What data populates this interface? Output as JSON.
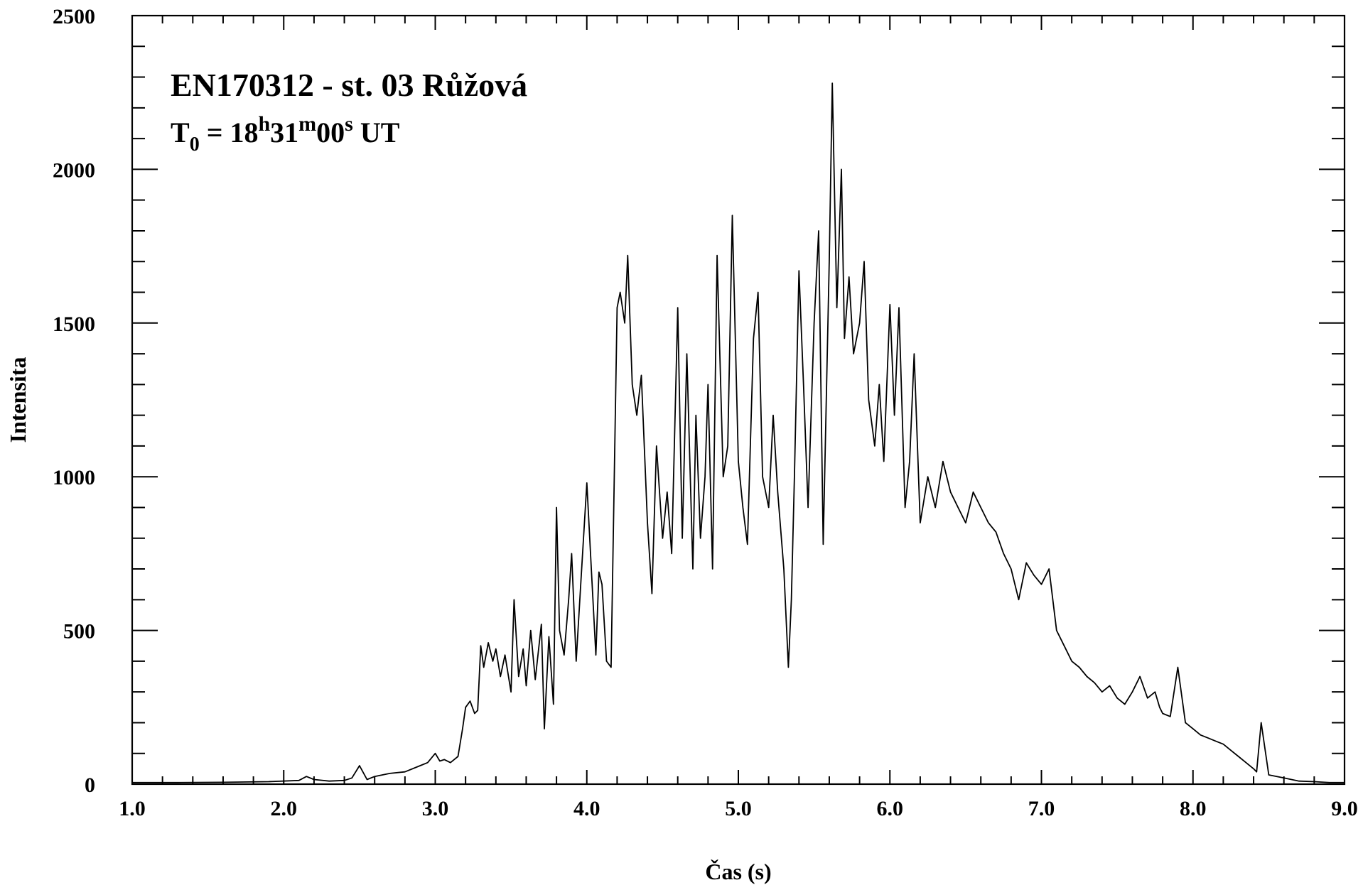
{
  "chart_data": {
    "type": "line",
    "title": "EN170312 - st. 03 Růžová",
    "subtitle": {
      "base": "T",
      "sub": "0",
      "eq": " = 18",
      "h": "h",
      "min_val": "31",
      "m": "m",
      "sec_val": "00",
      "s": "s",
      "tail": " UT"
    },
    "xlabel": "Čas (s)",
    "ylabel": "Intensita",
    "xlim": [
      1.0,
      9.0
    ],
    "ylim": [
      0,
      2500
    ],
    "x_ticks": [
      1.0,
      2.0,
      3.0,
      4.0,
      5.0,
      6.0,
      7.0,
      8.0,
      9.0
    ],
    "x_tick_labels": [
      "1.0",
      "2.0",
      "3.0",
      "4.0",
      "5.0",
      "6.0",
      "7.0",
      "8.0",
      "9.0"
    ],
    "y_ticks": [
      0,
      500,
      1000,
      1500,
      2000,
      2500
    ],
    "y_tick_labels": [
      "0",
      "500",
      "1000",
      "1500",
      "2000",
      "2500"
    ],
    "grid": false,
    "series": [
      {
        "color": "#000000",
        "x": [
          1.0,
          1.3,
          1.6,
          1.9,
          2.1,
          2.15,
          2.2,
          2.3,
          2.4,
          2.45,
          2.5,
          2.55,
          2.6,
          2.7,
          2.8,
          2.9,
          2.95,
          3.0,
          3.03,
          3.06,
          3.1,
          3.15,
          3.18,
          3.2,
          3.23,
          3.26,
          3.28,
          3.3,
          3.32,
          3.35,
          3.38,
          3.4,
          3.43,
          3.46,
          3.5,
          3.52,
          3.55,
          3.58,
          3.6,
          3.63,
          3.66,
          3.7,
          3.72,
          3.75,
          3.78,
          3.8,
          3.82,
          3.85,
          3.88,
          3.9,
          3.93,
          3.96,
          4.0,
          4.03,
          4.06,
          4.08,
          4.1,
          4.13,
          4.16,
          4.2,
          4.22,
          4.25,
          4.27,
          4.3,
          4.33,
          4.36,
          4.4,
          4.43,
          4.46,
          4.5,
          4.53,
          4.56,
          4.6,
          4.63,
          4.66,
          4.7,
          4.72,
          4.75,
          4.78,
          4.8,
          4.83,
          4.86,
          4.9,
          4.93,
          4.96,
          5.0,
          5.03,
          5.06,
          5.1,
          5.13,
          5.16,
          5.2,
          5.23,
          5.26,
          5.3,
          5.33,
          5.35,
          5.37,
          5.4,
          5.43,
          5.46,
          5.5,
          5.53,
          5.56,
          5.6,
          5.62,
          5.65,
          5.68,
          5.7,
          5.73,
          5.76,
          5.8,
          5.83,
          5.86,
          5.9,
          5.93,
          5.96,
          6.0,
          6.03,
          6.06,
          6.1,
          6.13,
          6.16,
          6.2,
          6.25,
          6.3,
          6.35,
          6.4,
          6.45,
          6.5,
          6.55,
          6.6,
          6.65,
          6.7,
          6.75,
          6.8,
          6.85,
          6.9,
          6.95,
          7.0,
          7.05,
          7.1,
          7.15,
          7.2,
          7.25,
          7.3,
          7.35,
          7.4,
          7.45,
          7.5,
          7.55,
          7.6,
          7.65,
          7.7,
          7.75,
          7.78,
          7.8,
          7.85,
          7.9,
          7.95,
          8.0,
          8.05,
          8.1,
          8.15,
          8.2,
          8.25,
          8.3,
          8.35,
          8.4,
          8.42,
          8.45,
          8.5,
          8.6,
          8.7,
          8.8,
          8.9,
          9.0
        ],
        "y": [
          5,
          5,
          6,
          8,
          12,
          25,
          15,
          10,
          12,
          20,
          60,
          15,
          25,
          35,
          40,
          60,
          70,
          100,
          75,
          80,
          70,
          90,
          180,
          250,
          270,
          230,
          240,
          450,
          380,
          460,
          400,
          440,
          350,
          420,
          300,
          600,
          350,
          440,
          320,
          500,
          340,
          520,
          180,
          480,
          260,
          900,
          500,
          420,
          600,
          750,
          400,
          650,
          980,
          700,
          420,
          690,
          650,
          400,
          380,
          1550,
          1600,
          1500,
          1720,
          1300,
          1200,
          1330,
          850,
          620,
          1100,
          800,
          950,
          750,
          1550,
          800,
          1400,
          700,
          1200,
          800,
          1000,
          1300,
          700,
          1720,
          1000,
          1100,
          1850,
          1050,
          900,
          780,
          1450,
          1600,
          1000,
          900,
          1200,
          950,
          700,
          380,
          600,
          1000,
          1670,
          1300,
          900,
          1500,
          1800,
          780,
          1700,
          2280,
          1550,
          2000,
          1450,
          1650,
          1400,
          1500,
          1700,
          1250,
          1100,
          1300,
          1050,
          1560,
          1200,
          1550,
          900,
          1050,
          1400,
          850,
          1000,
          900,
          1050,
          950,
          900,
          850,
          950,
          900,
          850,
          820,
          750,
          700,
          600,
          720,
          680,
          650,
          700,
          500,
          450,
          400,
          380,
          350,
          330,
          300,
          320,
          280,
          260,
          300,
          350,
          280,
          300,
          250,
          230,
          220,
          380,
          200,
          180,
          160,
          150,
          140,
          130,
          110,
          90,
          70,
          50,
          40,
          200,
          30,
          20,
          10,
          8,
          5,
          5
        ]
      }
    ]
  }
}
